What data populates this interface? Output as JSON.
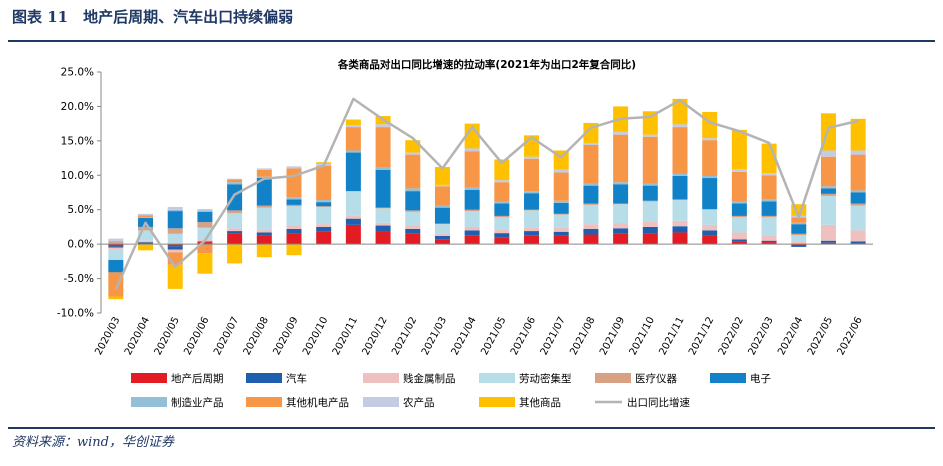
{
  "header": {
    "figure_title": "图表 11　地产后周期、汽车出口持续偏弱"
  },
  "footer": {
    "source": "资料来源：wind，华创证券"
  },
  "chart_data": {
    "type": "bar",
    "stacked": true,
    "title": "各类商品对出口同比增速的拉动率(2021年为出口2年复合同比)",
    "xlabel": "",
    "ylabel": "",
    "ylim": [
      -10,
      25
    ],
    "yticks": [
      -10,
      -5,
      0,
      5,
      10,
      15,
      20,
      25
    ],
    "ytick_labels": [
      "-10.0%",
      "-5.0%",
      "0.0%",
      "5.0%",
      "10.0%",
      "15.0%",
      "20.0%",
      "25.0%"
    ],
    "grid": false,
    "legend_position": "bottom",
    "categories": [
      "2020/03",
      "2020/04",
      "2020/05",
      "2020/06",
      "2020/07",
      "2020/08",
      "2020/09",
      "2020/10",
      "2020/11",
      "2020/12",
      "2021/02",
      "2021/03",
      "2021/04",
      "2021/05",
      "2021/06",
      "2021/07",
      "2021/08",
      "2021/09",
      "2021/10",
      "2021/11",
      "2021/12",
      "2022/02",
      "2022/03",
      "2022/04",
      "2022/05",
      "2022/06"
    ],
    "series": [
      {
        "name": "地产后周期",
        "color": "#e31b23",
        "kind": "bar",
        "values": [
          -0.3,
          0.2,
          -0.3,
          0.3,
          1.6,
          1.2,
          1.6,
          1.8,
          2.8,
          1.9,
          1.5,
          0.7,
          1.3,
          1.0,
          1.3,
          1.2,
          1.4,
          1.5,
          1.6,
          1.7,
          1.2,
          0.4,
          0.3,
          -0.2,
          0.2,
          0.1
        ]
      },
      {
        "name": "汽车",
        "color": "#1f5fae",
        "kind": "bar",
        "values": [
          -0.2,
          0.1,
          -0.5,
          0.1,
          0.3,
          0.5,
          0.6,
          0.7,
          0.9,
          0.8,
          0.7,
          0.5,
          0.7,
          0.6,
          0.6,
          0.6,
          0.8,
          0.8,
          0.9,
          0.9,
          0.8,
          0.3,
          0.2,
          -0.2,
          0.3,
          0.3
        ]
      },
      {
        "name": "贱金属制品",
        "color": "#efc0c0",
        "kind": "bar",
        "values": [
          -0.3,
          0.2,
          -0.4,
          0.2,
          0.4,
          0.4,
          0.5,
          0.4,
          0.4,
          0.4,
          0.5,
          0.4,
          0.5,
          0.5,
          0.5,
          0.6,
          0.7,
          0.7,
          0.8,
          0.8,
          0.8,
          1.0,
          0.8,
          0.4,
          2.3,
          1.6
        ]
      },
      {
        "name": "劳动密集型",
        "color": "#b7dde8",
        "kind": "bar",
        "values": [
          -1.5,
          1.5,
          1.5,
          1.8,
          2.2,
          3.2,
          2.8,
          2.5,
          3.6,
          2.1,
          2.0,
          1.3,
          2.3,
          1.8,
          2.5,
          1.9,
          2.8,
          2.8,
          2.9,
          3.0,
          2.2,
          2.2,
          2.6,
          0.9,
          4.2,
          3.6
        ]
      },
      {
        "name": "医疗仪器",
        "color": "#d8a183",
        "kind": "bar",
        "values": [
          0.3,
          0.5,
          0.8,
          0.8,
          0.4,
          0.3,
          0.2,
          0.1,
          0.0,
          0.1,
          0.2,
          0.1,
          0.2,
          0.2,
          0.1,
          0.1,
          0.2,
          0.1,
          0.1,
          0.1,
          0.1,
          0.2,
          0.2,
          0.2,
          0.3,
          0.3
        ]
      },
      {
        "name": "电子",
        "color": "#1282c8",
        "kind": "bar",
        "values": [
          -1.8,
          1.3,
          2.5,
          1.5,
          3.8,
          4.0,
          0.8,
          0.6,
          5.6,
          5.5,
          2.8,
          2.3,
          2.9,
          1.8,
          2.4,
          1.6,
          2.6,
          2.8,
          2.2,
          3.4,
          4.5,
          1.8,
          2.1,
          1.4,
          0.8,
          1.6
        ]
      },
      {
        "name": "制造业产品",
        "color": "#93c0d6",
        "kind": "bar",
        "values": [
          0.2,
          0.1,
          0.2,
          0.2,
          0.3,
          0.2,
          0.3,
          0.3,
          0.3,
          0.4,
          0.4,
          0.3,
          0.4,
          0.3,
          0.3,
          0.3,
          0.3,
          0.3,
          0.3,
          0.3,
          0.3,
          0.3,
          0.3,
          0.2,
          0.3,
          0.3
        ]
      },
      {
        "name": "其他机电产品",
        "color": "#f79646",
        "kind": "bar",
        "values": [
          -3.5,
          0.3,
          -1.8,
          -1.3,
          0.4,
          1.0,
          4.2,
          5.0,
          3.4,
          5.8,
          4.9,
          2.8,
          5.2,
          2.8,
          4.7,
          4.1,
          5.6,
          6.9,
          6.8,
          6.8,
          5.2,
          4.3,
          3.5,
          0.8,
          4.3,
          5.2
        ]
      },
      {
        "name": "农产品",
        "color": "#c4cbe3",
        "kind": "bar",
        "values": [
          0.3,
          0.2,
          0.4,
          0.2,
          0.1,
          0.2,
          0.3,
          0.3,
          0.3,
          0.4,
          0.3,
          0.2,
          0.4,
          0.3,
          0.3,
          0.4,
          0.3,
          0.4,
          0.3,
          0.4,
          0.3,
          0.4,
          0.3,
          0.2,
          0.9,
          0.6
        ]
      },
      {
        "name": "其他商品",
        "color": "#ffc000",
        "kind": "bar",
        "values": [
          -0.4,
          -0.9,
          -3.5,
          -3.0,
          -2.8,
          -1.9,
          -1.6,
          0.2,
          0.8,
          1.2,
          1.8,
          2.6,
          3.6,
          3.0,
          3.1,
          2.8,
          2.9,
          3.7,
          3.4,
          3.7,
          3.8,
          5.7,
          4.3,
          1.7,
          5.4,
          4.6
        ]
      },
      {
        "name": "出口同比增速",
        "color": "#b4b4b4",
        "kind": "line",
        "values": [
          -6.6,
          3.1,
          -3.3,
          0.5,
          7.2,
          9.5,
          9.9,
          11.4,
          21.1,
          18.1,
          15.4,
          11.0,
          17.0,
          11.8,
          15.5,
          12.6,
          16.9,
          18.2,
          18.5,
          20.9,
          17.7,
          16.4,
          14.7,
          3.9,
          16.9,
          17.9
        ]
      }
    ]
  }
}
